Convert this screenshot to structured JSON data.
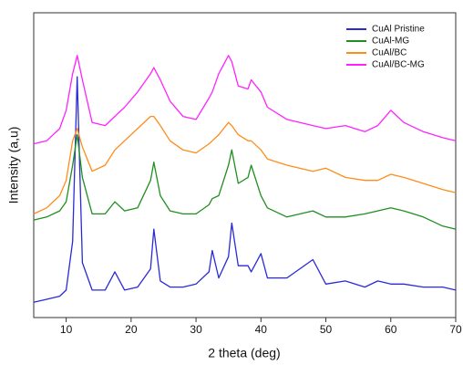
{
  "chart_data": {
    "type": "line",
    "x_label": "2 theta (deg)",
    "y_label": "Intensity (a,u)",
    "x": [
      5,
      7,
      9,
      10,
      11,
      11.7,
      12.5,
      14,
      16,
      17.5,
      19,
      21,
      23,
      23.5,
      24.5,
      26,
      28,
      30,
      32,
      32.5,
      33.5,
      35,
      35.5,
      36.5,
      38,
      38.5,
      40,
      41,
      44,
      48,
      50,
      53,
      56,
      58,
      60,
      62,
      65,
      68,
      70
    ],
    "xlim": [
      5,
      70
    ],
    "xticks": [
      10,
      20,
      30,
      40,
      50,
      60,
      70
    ],
    "ylim": [
      0,
      100
    ],
    "legend": "top-right",
    "series": [
      {
        "name": "CuAl Pristine",
        "color": "#2a2ad8",
        "values": [
          5,
          6,
          7,
          9,
          25,
          79,
          18,
          9,
          9,
          15,
          9,
          10,
          16,
          29,
          12,
          10,
          10,
          11,
          15,
          22,
          13,
          20,
          31,
          17,
          17,
          15,
          21,
          13,
          13,
          19,
          11,
          12,
          10,
          12,
          11,
          11,
          10,
          10,
          9
        ]
      },
      {
        "name": "CuAl-MG",
        "color": "#1f8f1f",
        "values": [
          32,
          33,
          35,
          38,
          50,
          60,
          46,
          34,
          34,
          38,
          35,
          36,
          45,
          51,
          40,
          35,
          34,
          34,
          37,
          39,
          40,
          50,
          55,
          44,
          46,
          50,
          40,
          36,
          33,
          35,
          33,
          33,
          34,
          35,
          36,
          35,
          33,
          30,
          29
        ]
      },
      {
        "name": "CuAl/BC",
        "color": "#ff8c1a",
        "values": [
          34,
          36,
          40,
          45,
          58,
          62,
          56,
          48,
          50,
          55,
          58,
          62,
          66,
          66,
          63,
          58,
          55,
          54,
          57,
          58,
          60,
          64,
          63,
          60,
          58,
          58,
          55,
          52,
          50,
          48,
          49,
          46,
          45,
          45,
          47,
          46,
          44,
          42,
          41
        ]
      },
      {
        "name": "CuAl/BC-MG",
        "color": "#ff22ff",
        "values": [
          57,
          58,
          62,
          68,
          80,
          86,
          78,
          64,
          63,
          66,
          69,
          74,
          80,
          82,
          78,
          71,
          66,
          65,
          72,
          74,
          80,
          86,
          84,
          76,
          75,
          78,
          74,
          69,
          65,
          63,
          62,
          63,
          61,
          63,
          68,
          64,
          61,
          59,
          58
        ]
      }
    ]
  }
}
